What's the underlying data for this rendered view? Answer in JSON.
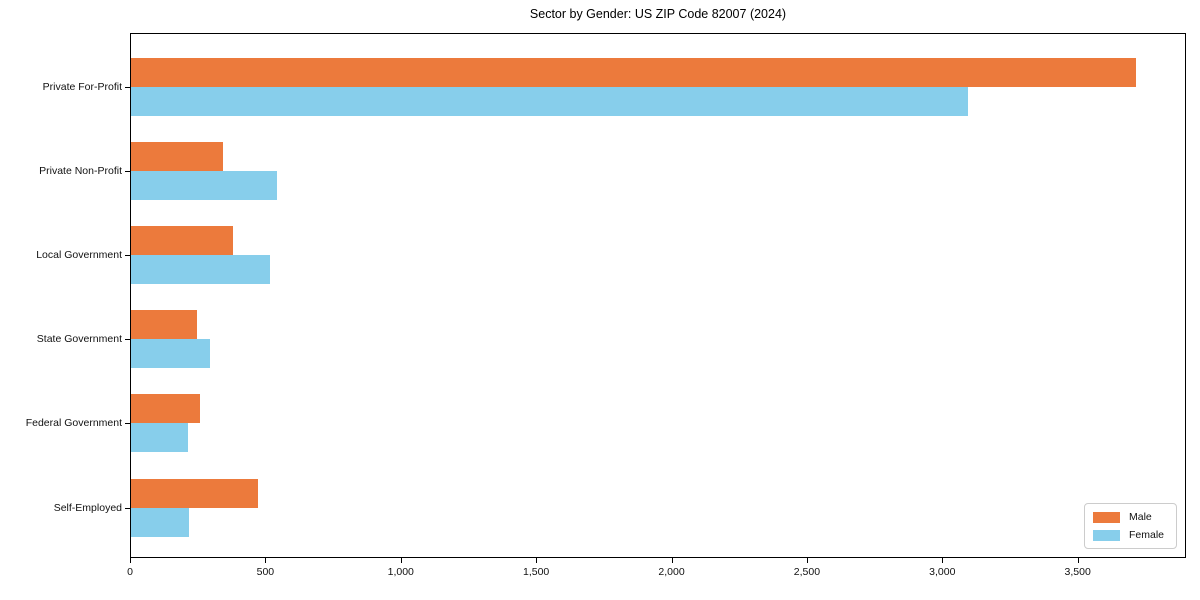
{
  "chart_data": {
    "type": "bar",
    "orientation": "horizontal",
    "title": "Sector by Gender: US ZIP Code 82007 (2024)",
    "xlabel": "",
    "ylabel": "",
    "categories": [
      "Private For-Profit",
      "Private Non-Profit",
      "Local Government",
      "State Government",
      "Federal Government",
      "Self-Employed"
    ],
    "series": [
      {
        "name": "Male",
        "color": "#ec7a3c",
        "values": [
          3710,
          340,
          375,
          245,
          255,
          470
        ]
      },
      {
        "name": "Female",
        "color": "#87ceeb",
        "values": [
          3090,
          540,
          515,
          290,
          210,
          215
        ]
      }
    ],
    "xlim": [
      0,
      3900
    ],
    "xticks": {
      "values": [
        0,
        500,
        1000,
        1500,
        2000,
        2500,
        3000,
        3500
      ],
      "labels": [
        "0",
        "500",
        "1,000",
        "1,500",
        "2,000",
        "2,500",
        "3,000",
        "3,500"
      ]
    },
    "grid": false,
    "legend_position": "lower right",
    "axis_color": "#000000",
    "background_color": "#ffffff"
  }
}
